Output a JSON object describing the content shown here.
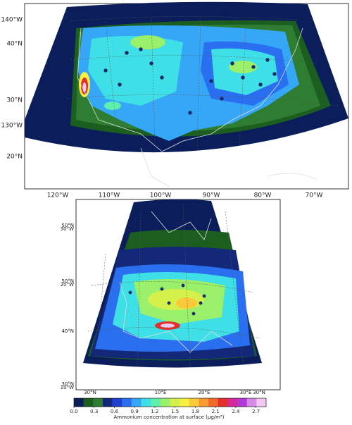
{
  "maps": [
    {
      "left_labels": [
        "140°W",
        "40°N",
        "30°N",
        "130°W",
        "20°N"
      ],
      "bottom_labels": [
        "120°W",
        "110°W",
        "100°W",
        "90°W",
        "80°W",
        "70°W"
      ]
    },
    {
      "left_labels": [
        "50°N",
        "30°W",
        "50°N",
        "20°W",
        "40°N",
        "30°N",
        "10°W"
      ],
      "bottom_labels": [
        "30°N",
        "10°E",
        "20°E",
        "30°E",
        "30°N"
      ]
    }
  ],
  "colorbar": {
    "label": "Ammonium concentration at surface (µg/m³)",
    "lim": [
      0,
      2.85
    ],
    "ticks": [
      {
        "value": 0,
        "label": "0.0"
      },
      0.3,
      0.6,
      0.9,
      1.2,
      1.5,
      1.8,
      2.1,
      2.4,
      2.7
    ],
    "colors": [
      "#0b1e5b",
      "#1b5e20",
      "#2e7d32",
      "#14287a",
      "#1e3fcf",
      "#2a6ff0",
      "#36a6f7",
      "#3fdfe8",
      "#5ff0b0",
      "#9af06a",
      "#d4f04a",
      "#f7f040",
      "#f9c93a",
      "#f79a30",
      "#f26a2a",
      "#e3302a",
      "#d62a9a",
      "#b03ad8",
      "#d68ae8",
      "#f1c8f3"
    ]
  }
}
